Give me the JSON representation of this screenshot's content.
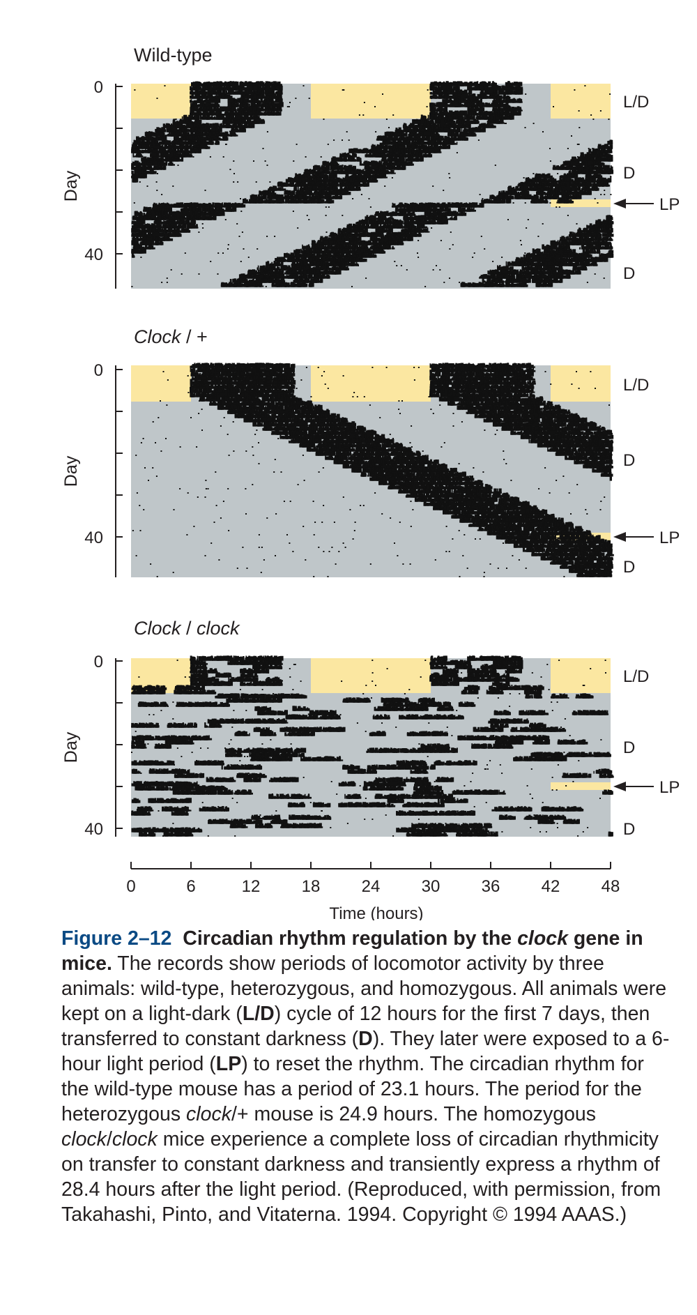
{
  "panels": [
    {
      "title_roman": "Wild-type",
      "title_italic": "",
      "title_sep": "",
      "title_tail": "",
      "ylabel": "Day",
      "y0": "0",
      "y40": "40",
      "labels": [
        {
          "t": "L/D",
          "day": 3.5
        },
        {
          "t": "D",
          "day": 20.5
        },
        {
          "t": "D",
          "day": 44.5
        }
      ],
      "lp_label": "LP",
      "lp_day": 28.0,
      "period_h": 23.1,
      "kind": "freerun",
      "start": 6.0,
      "span": 10,
      "density": 0.9
    },
    {
      "title_roman": "",
      "title_italic": "Clock",
      "title_sep": " / ",
      "title_tail": "+",
      "ylabel": "Day",
      "y0": "0",
      "y40": "40",
      "labels": [
        {
          "t": "L/D",
          "day": 3.5
        },
        {
          "t": "D",
          "day": 21.5
        },
        {
          "t": "D",
          "day": 47
        }
      ],
      "lp_label": "LP",
      "lp_day": 40.0,
      "period_h": 24.9,
      "kind": "freerun",
      "start": 6.0,
      "span": 11,
      "density": 1.0
    },
    {
      "title_roman": "",
      "title_italic": "Clock",
      "title_sep": " / ",
      "title_tail": "clock",
      "ylabel": "Day",
      "y0": "0",
      "y40": "40",
      "labels": [
        {
          "t": "L/D",
          "day": 3.5
        },
        {
          "t": "D",
          "day": 20.5
        },
        {
          "t": "D",
          "day": 40
        }
      ],
      "lp_label": "LP",
      "lp_day": 30.0,
      "period_h": 28.4,
      "kind": "arrhythmic",
      "start": 6.0,
      "span": 10,
      "density": 0.7
    }
  ],
  "x_axis": {
    "label": "Time (hours)",
    "ticks": [
      "0",
      "6",
      "12",
      "18",
      "24",
      "30",
      "36",
      "42",
      "48"
    ]
  },
  "colors": {
    "light": "#fbe7a1",
    "dark": "#bfc6c9",
    "activity": "#111111",
    "text": "#231f20",
    "caption_lead": "#0b4a84"
  },
  "caption": {
    "figno": "Figure 2–12",
    "lead1": "Circadian rhythm regulation by the ",
    "lead2": "clock",
    "lead3": " gene in mice.",
    "p1": " The records show periods of locomotor activity by three animals: wild-type, heterozygous, and homozygous. All animals were kept on a light-dark (",
    "ld": "L/D",
    "p2": ") cycle of 12 hours for the first 7 days, then transferred to constant darkness (",
    "d": "D",
    "p3": "). They later were exposed to a 6-hour light period (",
    "lp": "LP",
    "p4": ") to reset the rhythm. The circadian rhythm for the wild-type mouse has a period of 23.1 hours. The period for the heterozygous ",
    "cl1": "clock",
    "p5": "/+ mouse is 24.9 hours. The homozygous ",
    "cl2": "clock",
    "p6": "/",
    "cl3": "clock",
    "p7": " mice experience a complete loss of circadian rhythmicity on transfer to constant darkness and transiently express a rhythm of 28.4 hours after the light period. (Reproduced, with permission, from Takahashi, Pinto, and Vitaterna. 1994. Copyright © 1994 AAAS.)"
  }
}
